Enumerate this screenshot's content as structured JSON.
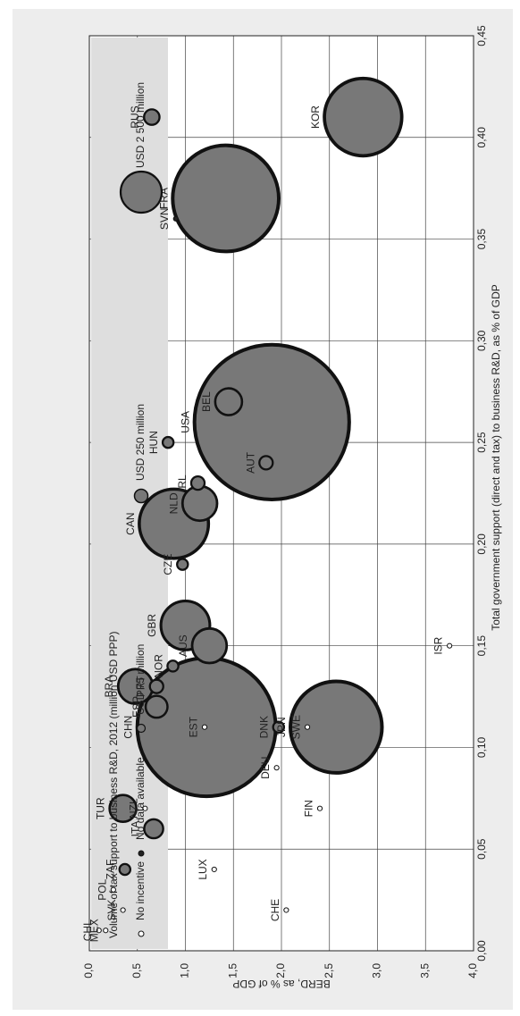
{
  "chart_data": {
    "type": "scatter",
    "title": "",
    "xlabel": "Total government support (direct and tax) to business R&D, as % of GDP",
    "ylabel": "BERD, as % of GDP",
    "xlim": [
      0,
      0.45
    ],
    "ylim": [
      0,
      4.0
    ],
    "x_ticks": [
      "0,00",
      "0,05",
      "0,10",
      "0,15",
      "0,20",
      "0,25",
      "0,30",
      "0,35",
      "0,40",
      "0,45"
    ],
    "y_ticks": [
      "0,0",
      "0,5",
      "1,0",
      "1,5",
      "2,0",
      "2,5",
      "3,0",
      "3,5",
      "4,0"
    ],
    "grid": true,
    "legend": {
      "title": "Volume of tax support to business R&D, 2012 (million USD PPP)",
      "placement": "top",
      "items": [
        {
          "label": "No incentive",
          "size": 0
        },
        {
          "label": "No data available",
          "size": 0
        },
        {
          "label": "USD 75 million",
          "size": 75
        },
        {
          "label": "USD 250 million",
          "size": 250
        },
        {
          "label": "USD 2 500 million",
          "size": 2500
        }
      ]
    },
    "points": [
      {
        "label": "KOR",
        "x": 0.41,
        "y": 2.85,
        "size": 2500,
        "status": "tax"
      },
      {
        "label": "RUS",
        "x": 0.41,
        "y": 0.65,
        "size": 100,
        "status": "tax"
      },
      {
        "label": "FRA",
        "x": 0.37,
        "y": 1.42,
        "size": 4700,
        "status": "tax"
      },
      {
        "label": "SVN",
        "x": 0.36,
        "y": 0.9,
        "size": 0,
        "status": "nodata"
      },
      {
        "label": "BEL",
        "x": 0.27,
        "y": 1.45,
        "size": 300,
        "status": "tax"
      },
      {
        "label": "USA",
        "x": 0.26,
        "y": 1.9,
        "size": 10000,
        "status": "tax"
      },
      {
        "label": "HUN",
        "x": 0.25,
        "y": 0.82,
        "size": 50,
        "status": "tax"
      },
      {
        "label": "AUT",
        "x": 0.24,
        "y": 1.84,
        "size": 75,
        "status": "tax"
      },
      {
        "label": "IRL",
        "x": 0.23,
        "y": 1.13,
        "size": 75,
        "status": "tax"
      },
      {
        "label": "NLD",
        "x": 0.22,
        "y": 1.15,
        "size": 500,
        "status": "tax"
      },
      {
        "label": "CAN",
        "x": 0.21,
        "y": 0.88,
        "size": 2000,
        "status": "tax"
      },
      {
        "label": "CZE",
        "x": 0.19,
        "y": 0.97,
        "size": 50,
        "status": "tax"
      },
      {
        "label": "GBR",
        "x": 0.16,
        "y": 1.0,
        "size": 1000,
        "status": "tax"
      },
      {
        "label": "AUS",
        "x": 0.15,
        "y": 1.25,
        "size": 500,
        "status": "tax"
      },
      {
        "label": "ISR",
        "x": 0.15,
        "y": 3.75,
        "size": 0,
        "status": "none"
      },
      {
        "label": "NOR",
        "x": 0.14,
        "y": 0.87,
        "size": 50,
        "status": "tax"
      },
      {
        "label": "PRT",
        "x": 0.13,
        "y": 0.7,
        "size": 75,
        "status": "tax"
      },
      {
        "label": "BRA",
        "x": 0.13,
        "y": 0.48,
        "size": 500,
        "status": "tax"
      },
      {
        "label": "ESP",
        "x": 0.12,
        "y": 0.7,
        "size": 200,
        "status": "tax"
      },
      {
        "label": "JPN",
        "x": 0.11,
        "y": 2.57,
        "size": 3500,
        "status": "tax"
      },
      {
        "label": "SWE",
        "x": 0.11,
        "y": 2.27,
        "size": 0,
        "status": "none"
      },
      {
        "label": "DNK",
        "x": 0.11,
        "y": 1.97,
        "size": 50,
        "status": "tax"
      },
      {
        "label": "CHN",
        "x": 0.11,
        "y": 1.22,
        "size": 8000,
        "status": "tax"
      },
      {
        "label": "EST",
        "x": 0.11,
        "y": 1.2,
        "size": 0,
        "status": "none"
      },
      {
        "label": "DEU",
        "x": 0.09,
        "y": 1.95,
        "size": 0,
        "status": "none"
      },
      {
        "label": "FIN",
        "x": 0.07,
        "y": 2.4,
        "size": 0,
        "status": "none"
      },
      {
        "label": "NZL",
        "x": 0.07,
        "y": 0.58,
        "size": 0,
        "status": "none"
      },
      {
        "label": "TUR",
        "x": 0.07,
        "y": 0.35,
        "size": 300,
        "status": "tax"
      },
      {
        "label": "ITA",
        "x": 0.06,
        "y": 0.67,
        "size": 150,
        "status": "tax"
      },
      {
        "label": "LUX",
        "x": 0.04,
        "y": 1.3,
        "size": 0,
        "status": "none"
      },
      {
        "label": "ZAF",
        "x": 0.04,
        "y": 0.37,
        "size": 50,
        "status": "tax"
      },
      {
        "label": "POL",
        "x": 0.03,
        "y": 0.25,
        "size": 0,
        "status": "none"
      },
      {
        "label": "CHE",
        "x": 0.02,
        "y": 2.05,
        "size": 0,
        "status": "none"
      },
      {
        "label": "SVK",
        "x": 0.02,
        "y": 0.35,
        "size": 0,
        "status": "none"
      },
      {
        "label": "MEX",
        "x": 0.01,
        "y": 0.17,
        "size": 0,
        "status": "none"
      },
      {
        "label": "CHL",
        "x": 0.01,
        "y": 0.1,
        "size": 0,
        "status": "none"
      }
    ]
  },
  "colors": {
    "bubble_fill": "#787878",
    "bubble_stroke": "#111111",
    "legend_bg": "#dedede",
    "grid": "#444444",
    "frame_bg": "#ededed"
  }
}
